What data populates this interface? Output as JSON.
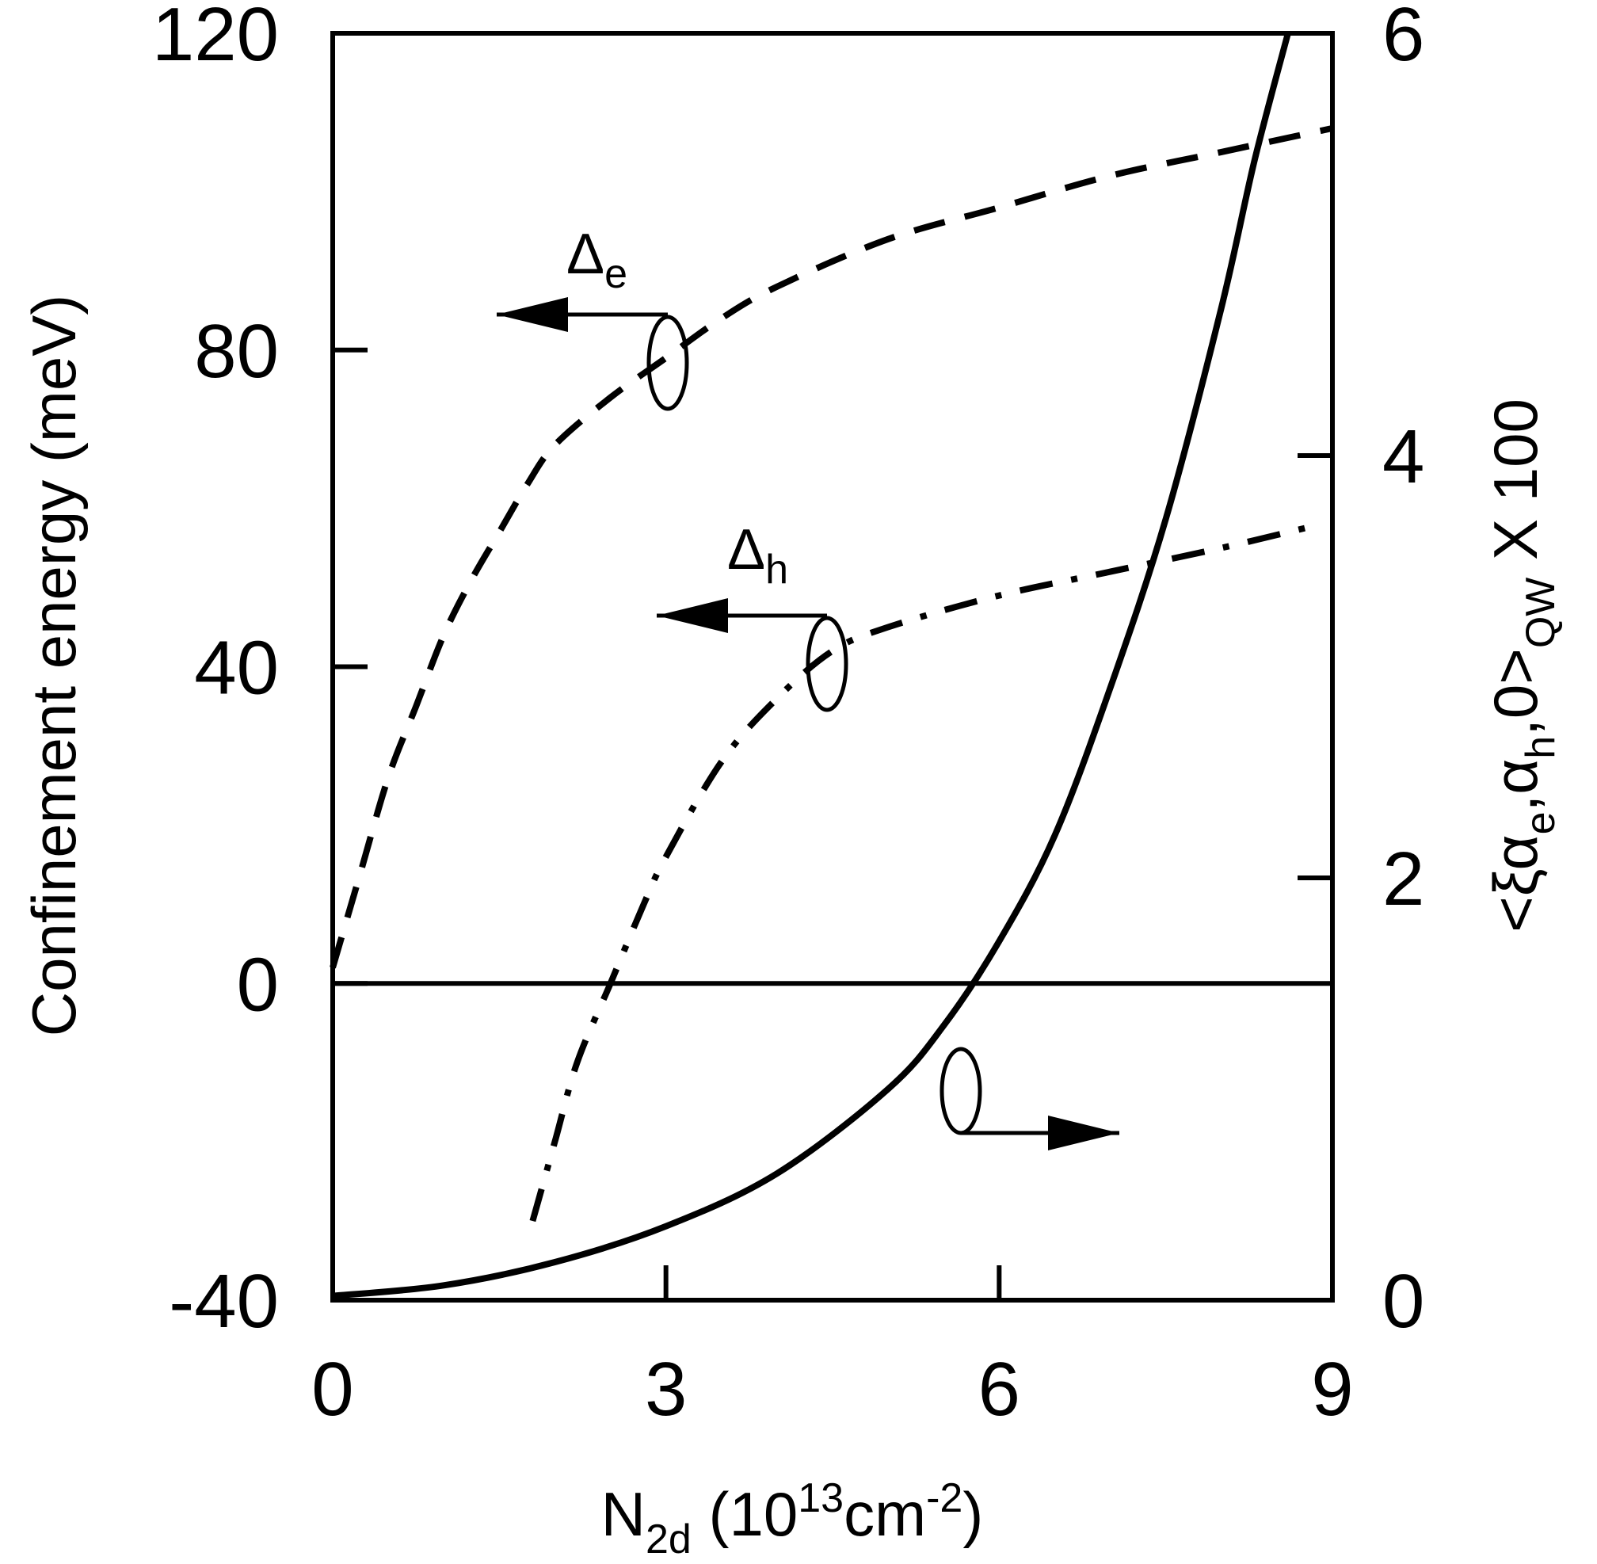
{
  "chart_data": {
    "type": "line",
    "xlabel": {
      "main": "N",
      "sub": "2d",
      "unit_open": " (10",
      "unit_sup1": "13",
      "unit_mid": "cm",
      "unit_sup2": "-2",
      "unit_close": ")"
    },
    "ylabel": "Confinement energy (meV)",
    "y2label": {
      "p1": "<ξ",
      "p2": "α",
      "s1": "e",
      "p3": ",α",
      "s2": "h",
      "p4": ",0>",
      "s3": "QW",
      "p5": " X 100"
    },
    "xlim": [
      0,
      9
    ],
    "ylim": [
      -40,
      120
    ],
    "y2lim": [
      0,
      6
    ],
    "x_ticks": [
      0,
      3,
      6,
      9
    ],
    "x_tick_labels": [
      "0",
      "3",
      "6",
      "9"
    ],
    "y_ticks": [
      -40,
      0,
      40,
      80,
      120
    ],
    "y_tick_labels": [
      "-40",
      "0",
      "40",
      "80",
      "120"
    ],
    "y2_ticks": [
      0,
      2,
      4,
      6
    ],
    "y2_tick_labels": [
      "0",
      "2",
      "4",
      "6"
    ],
    "reference_line_y": 0,
    "series": [
      {
        "label": {
          "base": "Δ",
          "sub": "e"
        },
        "axis": "left",
        "style": "dashed",
        "x": [
          0.0,
          0.25,
          0.5,
          0.75,
          1.0,
          1.25,
          1.5,
          1.75,
          2.0,
          2.5,
          3.0,
          3.5,
          4.0,
          5.0,
          6.0,
          7.0,
          8.0,
          9.0
        ],
        "y": [
          2,
          14,
          26,
          35,
          44,
          51,
          57,
          63,
          68,
          74,
          79,
          84,
          88,
          94,
          98,
          102,
          105,
          108
        ]
      },
      {
        "label": {
          "base": "Δ",
          "sub": "h"
        },
        "axis": "left",
        "style": "dash-dot",
        "x": [
          1.8,
          2.0,
          2.2,
          2.5,
          2.8,
          3.0,
          3.5,
          4.0,
          4.5,
          5.0,
          6.0,
          7.0,
          8.0,
          8.9
        ],
        "y": [
          -30,
          -20,
          -10,
          0,
          10,
          16,
          28,
          36,
          42,
          45,
          49,
          52,
          55,
          58
        ]
      },
      {
        "axis": "right",
        "style": "solid",
        "x": [
          0.0,
          1.0,
          2.0,
          3.0,
          4.0,
          5.0,
          5.5,
          6.0,
          6.5,
          7.0,
          7.5,
          8.0,
          8.3,
          8.6
        ],
        "y": [
          0.02,
          0.07,
          0.18,
          0.35,
          0.6,
          1.0,
          1.3,
          1.7,
          2.2,
          2.9,
          3.7,
          4.7,
          5.4,
          6.0
        ]
      }
    ]
  }
}
